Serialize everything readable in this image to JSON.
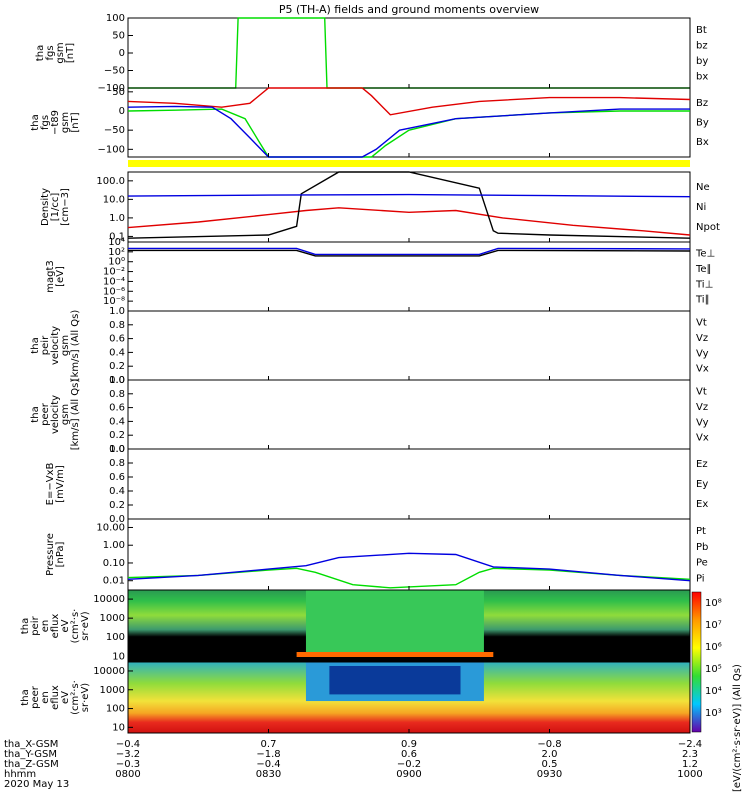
{
  "title": "P5 (TH-A) fields and ground moments overview",
  "date_label": "2020 May 13",
  "colors": {
    "black": "#000000",
    "red": "#e00000",
    "green": "#00dd00",
    "blue": "#0000e0",
    "yellow": "#ffff00"
  },
  "chart_data": [
    {
      "type": "line",
      "id": "fgs",
      "ylabel": [
        "tha",
        "fgs",
        "gsm",
        "[nT]"
      ],
      "ylim": [
        -100,
        100
      ],
      "yticks": [
        "100",
        "50",
        "0",
        "−50",
        "−100"
      ],
      "legend": [
        "Bt",
        "bz",
        "by",
        "bx"
      ],
      "series": [
        {
          "name": "by",
          "x": [
            "0800",
            "0823",
            "0823.5",
            "0842",
            "0842.5",
            "1000"
          ],
          "values": [
            -100,
            -100,
            100,
            100,
            -100,
            -100
          ]
        }
      ]
    },
    {
      "type": "line",
      "id": "fgs_dsl",
      "ylabel": [
        "tha",
        "fgs",
        "−t89",
        "gsm",
        "[nT]"
      ],
      "ylim": [
        -120,
        60
      ],
      "yticks": [
        "50",
        "0",
        "−50",
        "−100"
      ],
      "legend": [
        "Bz",
        "By",
        "Bx"
      ],
      "series": [
        {
          "name": "Bz",
          "x": [
            "0800",
            "0810",
            "0820",
            "0826",
            "0830",
            "0850",
            "0852",
            "0856",
            "0905",
            "0915",
            "0930",
            "0945",
            "1000"
          ],
          "values": [
            25,
            20,
            10,
            20,
            60,
            60,
            40,
            -10,
            10,
            25,
            35,
            35,
            30
          ]
        },
        {
          "name": "By",
          "x": [
            "0800",
            "0810",
            "0820",
            "0825",
            "0828",
            "0830",
            "0852",
            "0855",
            "0900",
            "0910",
            "0930",
            "0945",
            "1000"
          ],
          "values": [
            0,
            2,
            5,
            -20,
            -80,
            -130,
            -130,
            -90,
            -50,
            -20,
            -5,
            0,
            0
          ]
        },
        {
          "name": "Bx",
          "x": [
            "0800",
            "0810",
            "0818",
            "0822",
            "0826",
            "0830",
            "0850",
            "0853",
            "0858",
            "0910",
            "0930",
            "0945",
            "1000"
          ],
          "values": [
            10,
            12,
            10,
            -20,
            -70,
            -130,
            -130,
            -100,
            -50,
            -20,
            -5,
            5,
            5
          ]
        }
      ]
    },
    {
      "type": "line",
      "id": "density",
      "ylabel": [
        "Density",
        "[1/cc]",
        "[cm−3]"
      ],
      "ylim": [
        0.05,
        300
      ],
      "scale": "log",
      "yticks": [
        "100.0",
        "10.0",
        "1.0",
        "0.1"
      ],
      "legend": [
        "Ne",
        "Ni",
        "Npot"
      ],
      "series": [
        {
          "name": "Ne",
          "x": [
            "0800",
            "0815",
            "0830",
            "0838",
            "0845",
            "0900",
            "0910",
            "0920",
            "0935",
            "0950",
            "1000"
          ],
          "values": [
            0.3,
            0.6,
            1.5,
            2.5,
            3.5,
            2.0,
            2.5,
            1.0,
            0.4,
            0.2,
            0.12
          ]
        },
        {
          "name": "Ni",
          "x": [
            "0800",
            "0830",
            "0836",
            "0837",
            "0845",
            "0900",
            "0915",
            "0918",
            "0919",
            "0930",
            "1000"
          ],
          "values": [
            0.08,
            0.12,
            0.35,
            20,
            300,
            300,
            40,
            0.2,
            0.15,
            0.12,
            0.08
          ]
        },
        {
          "name": "Npot",
          "x": [
            "0800",
            "0830",
            "0900",
            "0930",
            "1000"
          ],
          "values": [
            15,
            17,
            18,
            16,
            14
          ]
        }
      ]
    },
    {
      "type": "line",
      "id": "temp",
      "ylabel": [
        "magt3",
        "[eV]"
      ],
      "ylim": [
        1e-10,
        10000.0
      ],
      "scale": "log",
      "yticks": [
        "10⁴",
        "10²",
        "10⁰",
        "10⁻²",
        "10⁻⁴",
        "10⁻⁶",
        "10⁻⁸"
      ],
      "legend": [
        "Te⊥",
        "Te∥",
        "Ti⊥",
        "Ti∥"
      ],
      "series": [
        {
          "name": "Ti⊥",
          "x": [
            "0800",
            "0836",
            "0840",
            "0915",
            "0919",
            "1000"
          ],
          "values": [
            500,
            500,
            30,
            30,
            500,
            400
          ]
        },
        {
          "name": "Te∥",
          "x": [
            "0800",
            "0836",
            "0840",
            "0915",
            "0919",
            "1000"
          ],
          "values": [
            200,
            200,
            15,
            15,
            200,
            150
          ]
        }
      ]
    },
    {
      "type": "line",
      "id": "peir_vel",
      "ylabel": [
        "tha",
        "peir",
        "velocity",
        "gsm",
        "[km/s] (All Qs)"
      ],
      "ylim": [
        0,
        1
      ],
      "yticks": [
        "1.0",
        "0.8",
        "0.6",
        "0.4",
        "0.2",
        "0.0"
      ],
      "legend": [
        "Vt",
        "Vz",
        "Vy",
        "Vx"
      ],
      "series": []
    },
    {
      "type": "line",
      "id": "peer_vel",
      "ylabel": [
        "tha",
        "peer",
        "velocity",
        "gsm",
        "[km/s] (All Qs)"
      ],
      "ylim": [
        0,
        1
      ],
      "yticks": [
        "1.0",
        "0.8",
        "0.6",
        "0.4",
        "0.2",
        "0.0"
      ],
      "legend": [
        "Vt",
        "Vz",
        "Vy",
        "Vx"
      ],
      "series": []
    },
    {
      "type": "line",
      "id": "efield",
      "ylabel": [
        "E=−VxB",
        "[mV/m]"
      ],
      "ylim": [
        0,
        1
      ],
      "yticks": [
        "1.0",
        "0.8",
        "0.6",
        "0.4",
        "0.2",
        "0.0"
      ],
      "legend": [
        "Ez",
        "Ey",
        "Ex"
      ],
      "series": []
    },
    {
      "type": "line",
      "id": "pressure",
      "ylabel": [
        "Pressure",
        "[nPa]"
      ],
      "ylim": [
        0.003,
        30
      ],
      "scale": "log",
      "yticks": [
        "10.00",
        "1.00",
        "0.10",
        "0.01"
      ],
      "legend": [
        "Pt",
        "Pb",
        "Pe",
        "Pi"
      ],
      "series": [
        {
          "name": "Pe",
          "x": [
            "0800",
            "0815",
            "0830",
            "0836",
            "0840",
            "0848",
            "0856",
            "0910",
            "0915",
            "0918",
            "0930",
            "0945",
            "1000"
          ],
          "values": [
            0.015,
            0.02,
            0.04,
            0.05,
            0.03,
            0.006,
            0.004,
            0.006,
            0.03,
            0.05,
            0.04,
            0.02,
            0.012
          ]
        },
        {
          "name": "Pi",
          "x": [
            "0800",
            "0815",
            "0830",
            "0838",
            "0845",
            "0900",
            "0910",
            "0918",
            "0930",
            "0945",
            "1000"
          ],
          "values": [
            0.012,
            0.02,
            0.045,
            0.07,
            0.2,
            0.35,
            0.3,
            0.06,
            0.045,
            0.02,
            0.01
          ]
        }
      ]
    },
    {
      "type": "heatmap",
      "id": "peir_eflux",
      "ylabel": [
        "tha",
        "peir",
        "en",
        "eflux",
        "eV",
        "(cm²·s·",
        "sr·eV)"
      ],
      "ylim": [
        5,
        30000
      ],
      "scale": "log",
      "yticks": [
        "10000",
        "1000",
        "100",
        "10"
      ]
    },
    {
      "type": "heatmap",
      "id": "peer_eflux",
      "ylabel": [
        "tha",
        "peer",
        "en",
        "eflux",
        "eV",
        "(cm²·s·",
        "sr·eV)"
      ],
      "ylim": [
        5,
        30000
      ],
      "scale": "log",
      "yticks": [
        "10000",
        "1000",
        "100",
        "10"
      ],
      "colorbar": {
        "label": "[eV/(cm²·s·sr·eV)] (All Qs)",
        "ticks": [
          "10⁸",
          "10⁷",
          "10⁶",
          "10⁵",
          "10⁴",
          "10³"
        ]
      }
    }
  ],
  "xaxis": {
    "rows": [
      {
        "label": "tha_X-GSM",
        "values": [
          "−0.4",
          "0.7",
          "0.9",
          "−0.8",
          "−2.4"
        ]
      },
      {
        "label": "tha_Y-GSM",
        "values": [
          "−3.2",
          "−1.8",
          "0.6",
          "2.0",
          "2.3"
        ]
      },
      {
        "label": "tha_Z-GSM",
        "values": [
          "−0.3",
          "−0.4",
          "−0.2",
          "0.5",
          "1.2"
        ]
      },
      {
        "label": "hhmm",
        "values": [
          "0800",
          "0830",
          "0900",
          "0930",
          "1000"
        ]
      }
    ]
  }
}
